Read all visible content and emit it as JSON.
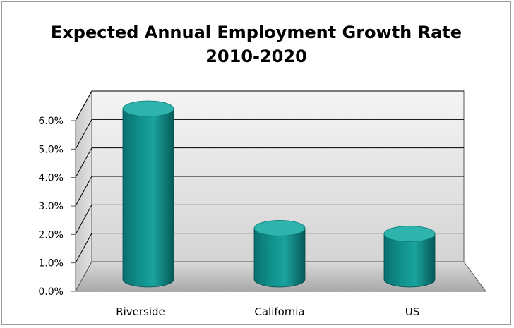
{
  "chart_data": {
    "type": "bar",
    "style": "3d-cylinder",
    "title_lines": [
      "Expected Annual Employment Growth Rate",
      "2010-2020"
    ],
    "categories": [
      "Riverside",
      "California",
      "US"
    ],
    "values": [
      0.06,
      0.018,
      0.016
    ],
    "y_ticks": [
      "0.0%",
      "1.0%",
      "2.0%",
      "3.0%",
      "4.0%",
      "5.0%",
      "6.0%"
    ],
    "ylim": [
      0,
      0.06
    ],
    "grid": true,
    "legend": "none",
    "colors": {
      "bar": "#0f8a87",
      "bar_dark": "#075e5c",
      "bar_light": "#2fb3ad",
      "wall": "#e6e6e6",
      "floor": "#bcbcbc",
      "grid": "#000000"
    }
  }
}
